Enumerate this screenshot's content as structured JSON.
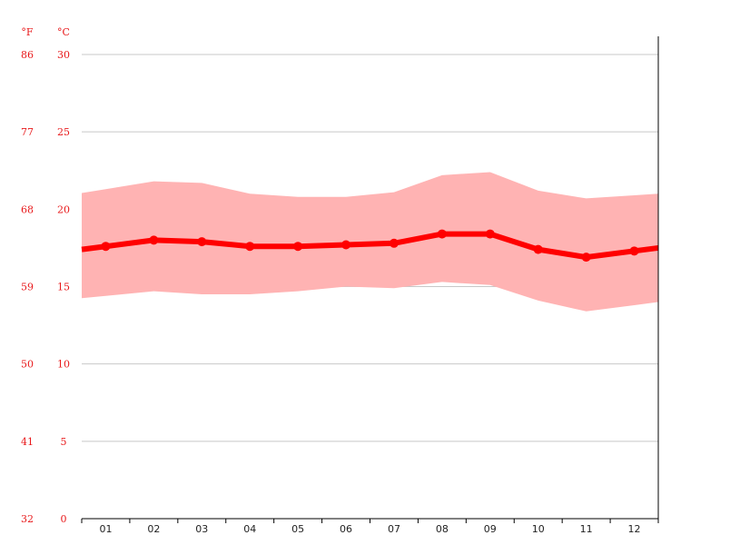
{
  "chart_data": {
    "type": "line",
    "categories": [
      "01",
      "02",
      "03",
      "04",
      "05",
      "06",
      "07",
      "08",
      "09",
      "10",
      "11",
      "12"
    ],
    "units": {
      "left": "°F",
      "right": "°C"
    },
    "y_ticks_c": [
      "30",
      "25",
      "20",
      "15",
      "10",
      "5",
      "0"
    ],
    "y_ticks_f": [
      "86",
      "77",
      "68",
      "59",
      "50",
      "41",
      "32"
    ],
    "ylim_c": [
      0,
      30
    ],
    "grid": true,
    "series": [
      {
        "role": "mean",
        "values": [
          17.6,
          18.0,
          17.9,
          17.6,
          17.6,
          17.7,
          17.8,
          18.4,
          18.4,
          17.4,
          16.9,
          17.3
        ]
      },
      {
        "role": "max",
        "values": [
          21.3,
          21.8,
          21.7,
          21.0,
          20.8,
          20.8,
          21.1,
          22.2,
          22.4,
          21.2,
          20.7,
          20.9
        ]
      },
      {
        "role": "min",
        "values": [
          14.4,
          14.7,
          14.5,
          14.5,
          14.7,
          15.0,
          14.9,
          15.3,
          15.1,
          14.1,
          13.4,
          13.8
        ]
      }
    ],
    "colors": {
      "mean": "#ff0000",
      "band": "#ffb3b3",
      "grid": "#c8c8c8",
      "axis": "#000000",
      "ylabels": "#e8191b"
    }
  }
}
